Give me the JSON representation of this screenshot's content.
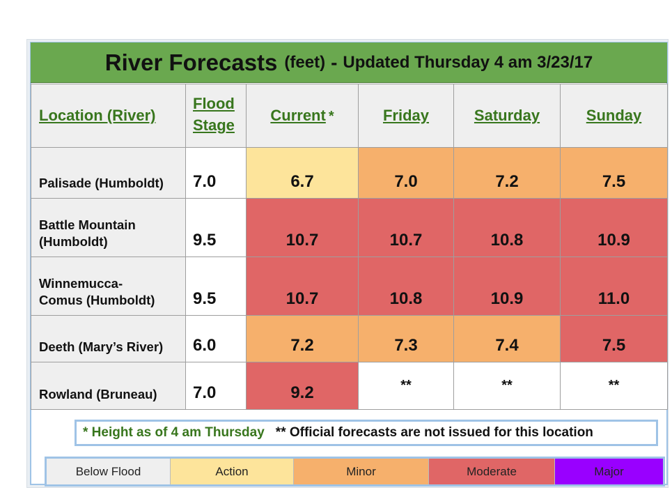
{
  "title": {
    "main": "River Forecasts",
    "unit": "(feet)",
    "dash": "-",
    "updated": "Updated Thursday 4 am 3/23/17"
  },
  "headers": {
    "location": "Location (River)",
    "flood_stage_line1": "Flood",
    "flood_stage_line2": "Stage",
    "current": "Current",
    "current_mark": "*",
    "day1": "Friday",
    "day2": "Saturday",
    "day3": "Sunday"
  },
  "colors": {
    "below": "#efefef",
    "action": "#fde49b",
    "minor": "#f6b06c",
    "moderate": "#e06666",
    "major": "#9900ff",
    "none": "#ffffff"
  },
  "rows": [
    {
      "loc1": "Palisade (Humboldt)",
      "loc2": "",
      "flood": "7.0",
      "current": "6.7",
      "day1": "7.0",
      "day2": "7.2",
      "day3": "7.5",
      "cat": [
        "action",
        "minor",
        "minor",
        "minor"
      ]
    },
    {
      "loc1": "Battle Mountain",
      "loc2": "(Humboldt)",
      "flood": "9.5",
      "current": "10.7",
      "day1": "10.7",
      "day2": "10.8",
      "day3": "10.9",
      "cat": [
        "moderate",
        "moderate",
        "moderate",
        "moderate"
      ]
    },
    {
      "loc1": "Winnemucca-",
      "loc2": "Comus (Humboldt)",
      "flood": "9.5",
      "current": "10.7",
      "day1": "10.8",
      "day2": "10.9",
      "day3": "11.0",
      "cat": [
        "moderate",
        "moderate",
        "moderate",
        "moderate"
      ]
    },
    {
      "loc1": "Deeth (Mary’s River)",
      "loc2": "",
      "flood": "6.0",
      "current": "7.2",
      "day1": "7.3",
      "day2": "7.4",
      "day3": "7.5",
      "cat": [
        "minor",
        "minor",
        "minor",
        "moderate"
      ]
    },
    {
      "loc1": "Rowland (Bruneau)",
      "loc2": "",
      "flood": "7.0",
      "current": "9.2",
      "day1": "**",
      "day2": "**",
      "day3": "**",
      "cat": [
        "moderate",
        "none",
        "none",
        "none"
      ]
    }
  ],
  "notes": {
    "current_note": "* Height as of 4 am Thursday",
    "forecast_note": "** Official forecasts are not issued for this location"
  },
  "legend": [
    {
      "label": "Below Flood",
      "color": "#efefef"
    },
    {
      "label": "Action",
      "color": "#fde49b"
    },
    {
      "label": "Minor",
      "color": "#f6b06c"
    },
    {
      "label": "Moderate",
      "color": "#e06666"
    },
    {
      "label": "Major",
      "color": "#9900ff"
    }
  ]
}
